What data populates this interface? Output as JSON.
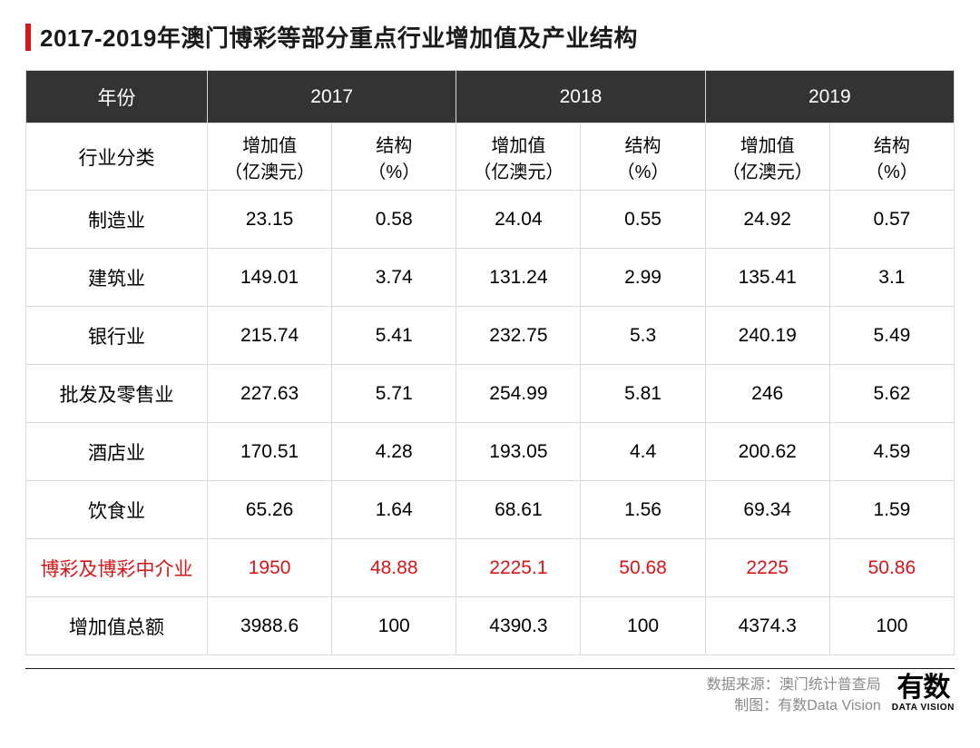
{
  "title": "2017-2019年澳门博彩等部分重点行业增加值及产业结构",
  "accent_color": "#d8161a",
  "header_bg": "#333333",
  "border_color": "#d9d9d9",
  "table": {
    "year_header_label": "年份",
    "years": [
      "2017",
      "2018",
      "2019"
    ],
    "category_header_label": "行业分类",
    "sub_headers": {
      "value": "增加值\n（亿澳元）",
      "pct": "结构\n（%）"
    },
    "rows": [
      {
        "label": "制造业",
        "cells": [
          "23.15",
          "0.58",
          "24.04",
          "0.55",
          "24.92",
          "0.57"
        ],
        "highlight": false
      },
      {
        "label": "建筑业",
        "cells": [
          "149.01",
          "3.74",
          "131.24",
          "2.99",
          "135.41",
          "3.1"
        ],
        "highlight": false
      },
      {
        "label": "银行业",
        "cells": [
          "215.74",
          "5.41",
          "232.75",
          "5.3",
          "240.19",
          "5.49"
        ],
        "highlight": false
      },
      {
        "label": "批发及零售业",
        "cells": [
          "227.63",
          "5.71",
          "254.99",
          "5.81",
          "246",
          "5.62"
        ],
        "highlight": false
      },
      {
        "label": "酒店业",
        "cells": [
          "170.51",
          "4.28",
          "193.05",
          "4.4",
          "200.62",
          "4.59"
        ],
        "highlight": false
      },
      {
        "label": "饮食业",
        "cells": [
          "65.26",
          "1.64",
          "68.61",
          "1.56",
          "69.34",
          "1.59"
        ],
        "highlight": false
      },
      {
        "label": "博彩及博彩中介业",
        "cells": [
          "1950",
          "48.88",
          "2225.1",
          "50.68",
          "2225",
          "50.86"
        ],
        "highlight": true
      },
      {
        "label": "增加值总额",
        "cells": [
          "3988.6",
          "100",
          "4390.3",
          "100",
          "4374.3",
          "100"
        ],
        "highlight": false
      }
    ]
  },
  "footer": {
    "source_line": "数据来源：澳门统计普查局",
    "credit_line": "制图：有数Data Vision",
    "logo_main": "有数",
    "logo_sub": "DATA VISION"
  }
}
